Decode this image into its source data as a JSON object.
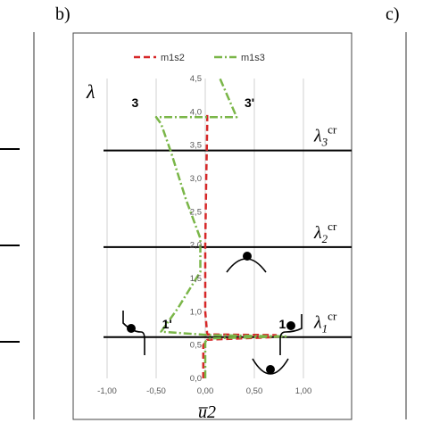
{
  "panel_labels": {
    "left": "b)",
    "right": "c)"
  },
  "chart_data": {
    "type": "line",
    "title": "",
    "xlabel": "u̅2",
    "ylabel": "λ",
    "xlim": [
      -1.0,
      1.0
    ],
    "ylim": [
      0.0,
      4.5
    ],
    "grid": {
      "vertical": true,
      "horizontal": false
    },
    "legend_position": "top",
    "x_ticks": [
      "-1,00",
      "-0,50",
      "0,00",
      "0,50",
      "1,00"
    ],
    "y_ticks": [
      "0,0",
      "0,5",
      "1,0",
      "1,5",
      "2,0",
      "2,5",
      "3,0",
      "3,5",
      "4,0",
      "4,5"
    ],
    "critical_lines": [
      {
        "y": 0.62,
        "label": "λ1cr",
        "base": "λ",
        "sub": "1",
        "sup": "cr"
      },
      {
        "y": 1.97,
        "label": "λ2cr",
        "base": "λ",
        "sub": "2",
        "sup": "cr"
      },
      {
        "y": 3.42,
        "label": "λ3cr",
        "base": "λ",
        "sub": "3",
        "sup": "cr"
      }
    ],
    "series": [
      {
        "name": "m1s2",
        "color": "#d62728",
        "style": "dashed",
        "points": [
          [
            -0.02,
            0.0
          ],
          [
            -0.02,
            0.5
          ],
          [
            0.02,
            0.58
          ],
          [
            0.72,
            0.62
          ],
          [
            0.72,
            0.65
          ],
          [
            0.02,
            0.66
          ],
          [
            0.0,
            1.0
          ],
          [
            0.0,
            2.0
          ],
          [
            0.01,
            3.0
          ],
          [
            0.02,
            3.8
          ],
          [
            0.02,
            4.0
          ]
        ]
      },
      {
        "name": "m1s3",
        "color": "#7ab648",
        "style": "dashdot",
        "points": [
          [
            0.0,
            0.0
          ],
          [
            0.0,
            0.55
          ],
          [
            0.05,
            0.6
          ],
          [
            0.82,
            0.63
          ],
          [
            0.05,
            0.65
          ],
          [
            -0.45,
            0.7
          ],
          [
            -0.28,
            1.05
          ],
          [
            -0.05,
            1.6
          ],
          [
            -0.05,
            2.1
          ],
          [
            -0.2,
            2.7
          ],
          [
            -0.35,
            3.4
          ],
          [
            -0.45,
            3.82
          ],
          [
            -0.5,
            3.92
          ],
          [
            -0.35,
            3.92
          ],
          [
            0.32,
            3.92
          ],
          [
            0.15,
            4.5
          ]
        ]
      }
    ],
    "annotations": [
      {
        "text": "3",
        "x": -0.75,
        "y": 4.07
      },
      {
        "text": "3'",
        "x": 0.4,
        "y": 4.07
      },
      {
        "text": "1'",
        "x": -0.44,
        "y": 0.75
      },
      {
        "text": "1",
        "x": 0.75,
        "y": 0.75
      }
    ]
  }
}
